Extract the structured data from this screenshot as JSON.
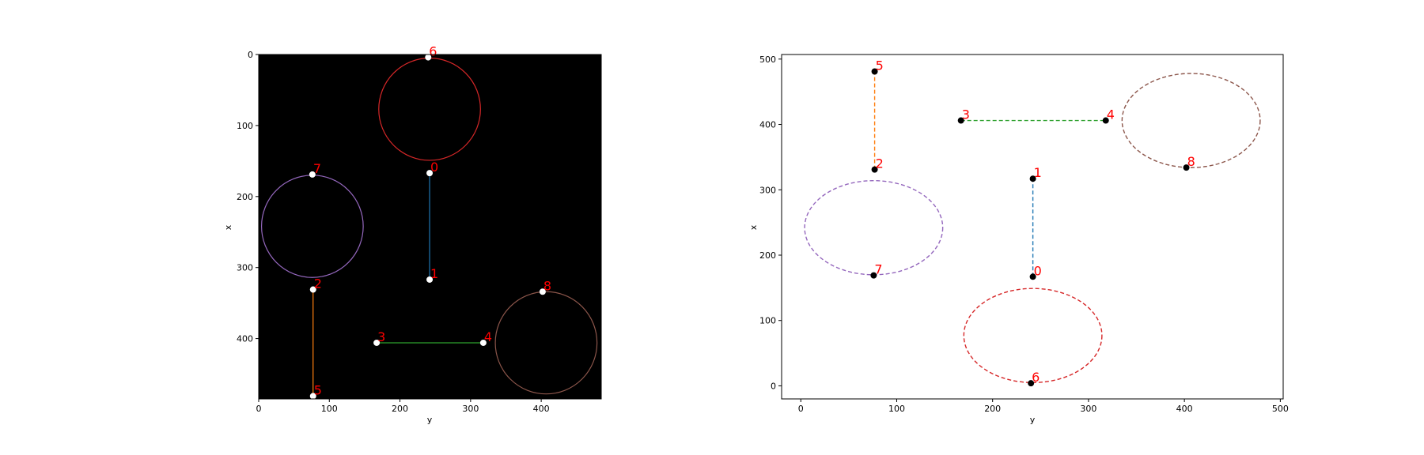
{
  "chart_data": [
    {
      "type": "scatter",
      "title": "",
      "background": "#000000",
      "xlabel": "y",
      "ylabel": "x",
      "xlim": [
        0,
        485
      ],
      "ylim": [
        485,
        0
      ],
      "y_inverted": true,
      "xticks": [
        0,
        100,
        200,
        300,
        400
      ],
      "yticks": [
        0,
        100,
        200,
        300,
        400
      ],
      "point_color": "#ffffff",
      "label_color": "#ff0000",
      "points": [
        {
          "label": "0",
          "x": 242,
          "y": 167
        },
        {
          "label": "1",
          "x": 242,
          "y": 317
        },
        {
          "label": "2",
          "x": 77,
          "y": 331
        },
        {
          "label": "3",
          "x": 167,
          "y": 406
        },
        {
          "label": "4",
          "x": 318,
          "y": 406
        },
        {
          "label": "5",
          "x": 77,
          "y": 481
        },
        {
          "label": "6",
          "x": 240,
          "y": 4
        },
        {
          "label": "7",
          "x": 76,
          "y": 169
        },
        {
          "label": "8",
          "x": 402,
          "y": 334
        }
      ],
      "segments": [
        {
          "from": "0",
          "to": "1",
          "color": "#1f77b4",
          "dashed": false
        },
        {
          "from": "2",
          "to": "5",
          "color": "#ff7f0e",
          "dashed": false
        },
        {
          "from": "3",
          "to": "4",
          "color": "#2ca02c",
          "dashed": false
        }
      ],
      "circles": [
        {
          "cx": 242,
          "cy": 77,
          "r": 72,
          "color": "#d62728",
          "dashed": false,
          "through": "6"
        },
        {
          "cx": 76,
          "cy": 242,
          "r": 72,
          "color": "#9467bd",
          "dashed": false,
          "through": "7"
        },
        {
          "cx": 407,
          "cy": 406,
          "r": 72,
          "color": "#8c564b",
          "dashed": false,
          "through": "8"
        }
      ]
    },
    {
      "type": "scatter",
      "title": "",
      "background": "#ffffff",
      "xlabel": "y",
      "ylabel": "x",
      "xlim": [
        -20,
        503
      ],
      "ylim": [
        -20,
        507
      ],
      "y_inverted": false,
      "xticks": [
        0,
        100,
        200,
        300,
        400,
        500
      ],
      "yticks": [
        0,
        100,
        200,
        300,
        400,
        500
      ],
      "point_color": "#000000",
      "label_color": "#ff0000",
      "points": [
        {
          "label": "0",
          "x": 242,
          "y": 167
        },
        {
          "label": "1",
          "x": 242,
          "y": 317
        },
        {
          "label": "2",
          "x": 77,
          "y": 331
        },
        {
          "label": "3",
          "x": 167,
          "y": 406
        },
        {
          "label": "4",
          "x": 318,
          "y": 406
        },
        {
          "label": "5",
          "x": 77,
          "y": 481
        },
        {
          "label": "6",
          "x": 240,
          "y": 4
        },
        {
          "label": "7",
          "x": 76,
          "y": 169
        },
        {
          "label": "8",
          "x": 402,
          "y": 334
        }
      ],
      "segments": [
        {
          "from": "0",
          "to": "1",
          "color": "#1f77b4",
          "dashed": true
        },
        {
          "from": "2",
          "to": "5",
          "color": "#ff7f0e",
          "dashed": true
        },
        {
          "from": "3",
          "to": "4",
          "color": "#2ca02c",
          "dashed": true
        }
      ],
      "circles": [
        {
          "cx": 242,
          "cy": 77,
          "r": 72,
          "color": "#d62728",
          "dashed": true,
          "through": "6"
        },
        {
          "cx": 76,
          "cy": 242,
          "r": 72,
          "color": "#9467bd",
          "dashed": true,
          "through": "7"
        },
        {
          "cx": 407,
          "cy": 406,
          "r": 72,
          "color": "#8c564b",
          "dashed": true,
          "through": "8"
        }
      ]
    }
  ]
}
